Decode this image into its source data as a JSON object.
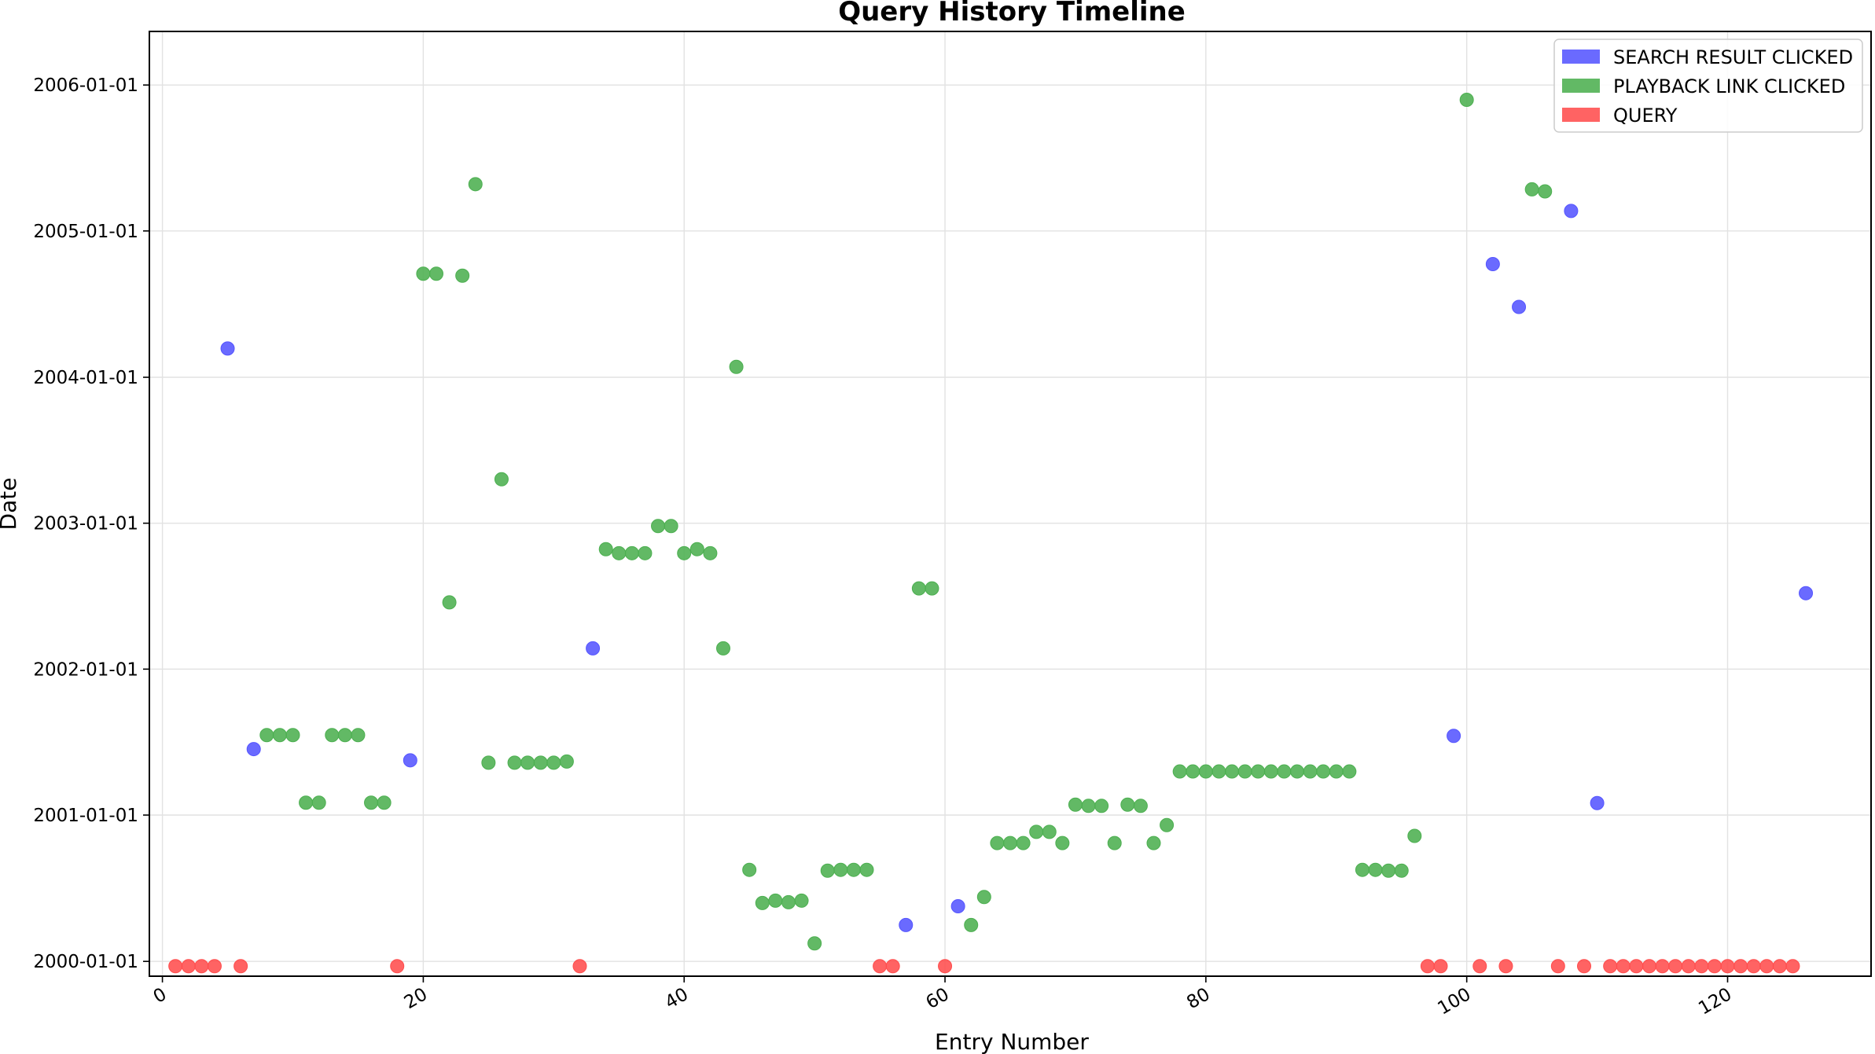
{
  "chart_data": {
    "type": "scatter",
    "title": "Query History Timeline",
    "xlabel": "Entry Number",
    "ylabel": "Date",
    "xlim": [
      -1,
      131
    ],
    "ylim": [
      "1999-11-25",
      "2006-05-15"
    ],
    "grid": true,
    "legend_position": "top-right",
    "x_ticks": [
      0,
      20,
      40,
      60,
      80,
      100,
      120
    ],
    "y_ticks": [
      "2000-01-01",
      "2001-01-01",
      "2002-01-01",
      "2003-01-01",
      "2004-01-01",
      "2005-01-01",
      "2006-01-01"
    ],
    "series": [
      {
        "name": "SEARCH RESULT CLICKED",
        "color": "#5555ff",
        "points": [
          {
            "x": 5,
            "y": "2004-03-13"
          },
          {
            "x": 7,
            "y": "2001-06-15"
          },
          {
            "x": 19,
            "y": "2001-05-18"
          },
          {
            "x": 33,
            "y": "2002-02-22"
          },
          {
            "x": 57,
            "y": "2000-04-01"
          },
          {
            "x": 61,
            "y": "2000-05-18"
          },
          {
            "x": 99,
            "y": "2001-07-18"
          },
          {
            "x": 102,
            "y": "2004-10-10"
          },
          {
            "x": 104,
            "y": "2004-06-25"
          },
          {
            "x": 108,
            "y": "2005-02-20"
          },
          {
            "x": 110,
            "y": "2001-01-31"
          },
          {
            "x": 126,
            "y": "2002-07-10"
          }
        ]
      },
      {
        "name": "PLAYBACK LINK CLICKED",
        "color": "#4caf50",
        "points": [
          {
            "x": 8,
            "y": "2001-07-20"
          },
          {
            "x": 9,
            "y": "2001-07-20"
          },
          {
            "x": 10,
            "y": "2001-07-20"
          },
          {
            "x": 11,
            "y": "2001-02-01"
          },
          {
            "x": 12,
            "y": "2001-02-01"
          },
          {
            "x": 13,
            "y": "2001-07-20"
          },
          {
            "x": 14,
            "y": "2001-07-20"
          },
          {
            "x": 15,
            "y": "2001-07-20"
          },
          {
            "x": 16,
            "y": "2001-02-01"
          },
          {
            "x": 17,
            "y": "2001-02-01"
          },
          {
            "x": 20,
            "y": "2004-09-16"
          },
          {
            "x": 21,
            "y": "2004-09-16"
          },
          {
            "x": 22,
            "y": "2002-06-17"
          },
          {
            "x": 23,
            "y": "2004-09-11"
          },
          {
            "x": 24,
            "y": "2005-04-28"
          },
          {
            "x": 25,
            "y": "2001-05-12"
          },
          {
            "x": 26,
            "y": "2003-04-21"
          },
          {
            "x": 27,
            "y": "2001-05-12"
          },
          {
            "x": 28,
            "y": "2001-05-12"
          },
          {
            "x": 29,
            "y": "2001-05-12"
          },
          {
            "x": 30,
            "y": "2001-05-12"
          },
          {
            "x": 31,
            "y": "2001-05-15"
          },
          {
            "x": 34,
            "y": "2002-10-28"
          },
          {
            "x": 35,
            "y": "2002-10-18"
          },
          {
            "x": 36,
            "y": "2002-10-18"
          },
          {
            "x": 37,
            "y": "2002-10-18"
          },
          {
            "x": 38,
            "y": "2002-12-25"
          },
          {
            "x": 39,
            "y": "2002-12-25"
          },
          {
            "x": 40,
            "y": "2002-10-18"
          },
          {
            "x": 41,
            "y": "2002-10-28"
          },
          {
            "x": 42,
            "y": "2002-10-18"
          },
          {
            "x": 43,
            "y": "2002-02-22"
          },
          {
            "x": 44,
            "y": "2004-01-27"
          },
          {
            "x": 45,
            "y": "2000-08-17"
          },
          {
            "x": 46,
            "y": "2000-05-26"
          },
          {
            "x": 47,
            "y": "2000-06-01"
          },
          {
            "x": 48,
            "y": "2000-05-28"
          },
          {
            "x": 49,
            "y": "2000-06-01"
          },
          {
            "x": 50,
            "y": "2000-02-15"
          },
          {
            "x": 51,
            "y": "2000-08-15"
          },
          {
            "x": 52,
            "y": "2000-08-17"
          },
          {
            "x": 53,
            "y": "2000-08-17"
          },
          {
            "x": 54,
            "y": "2000-08-17"
          },
          {
            "x": 58,
            "y": "2002-07-22"
          },
          {
            "x": 59,
            "y": "2002-07-22"
          },
          {
            "x": 62,
            "y": "2000-04-01"
          },
          {
            "x": 63,
            "y": "2000-06-10"
          },
          {
            "x": 64,
            "y": "2000-10-23"
          },
          {
            "x": 65,
            "y": "2000-10-23"
          },
          {
            "x": 66,
            "y": "2000-10-23"
          },
          {
            "x": 67,
            "y": "2000-11-20"
          },
          {
            "x": 68,
            "y": "2000-11-20"
          },
          {
            "x": 69,
            "y": "2000-10-23"
          },
          {
            "x": 70,
            "y": "2001-01-27"
          },
          {
            "x": 71,
            "y": "2001-01-24"
          },
          {
            "x": 72,
            "y": "2001-01-24"
          },
          {
            "x": 73,
            "y": "2000-10-23"
          },
          {
            "x": 74,
            "y": "2001-01-27"
          },
          {
            "x": 75,
            "y": "2001-01-24"
          },
          {
            "x": 76,
            "y": "2000-10-23"
          },
          {
            "x": 77,
            "y": "2000-12-07"
          },
          {
            "x": 78,
            "y": "2001-04-20"
          },
          {
            "x": 79,
            "y": "2001-04-20"
          },
          {
            "x": 80,
            "y": "2001-04-20"
          },
          {
            "x": 81,
            "y": "2001-04-20"
          },
          {
            "x": 82,
            "y": "2001-04-20"
          },
          {
            "x": 83,
            "y": "2001-04-20"
          },
          {
            "x": 84,
            "y": "2001-04-20"
          },
          {
            "x": 85,
            "y": "2001-04-20"
          },
          {
            "x": 86,
            "y": "2001-04-20"
          },
          {
            "x": 87,
            "y": "2001-04-20"
          },
          {
            "x": 88,
            "y": "2001-04-20"
          },
          {
            "x": 89,
            "y": "2001-04-20"
          },
          {
            "x": 90,
            "y": "2001-04-20"
          },
          {
            "x": 91,
            "y": "2001-04-20"
          },
          {
            "x": 92,
            "y": "2000-08-17"
          },
          {
            "x": 93,
            "y": "2000-08-17"
          },
          {
            "x": 94,
            "y": "2000-08-15"
          },
          {
            "x": 95,
            "y": "2000-08-15"
          },
          {
            "x": 96,
            "y": "2000-11-10"
          },
          {
            "x": 100,
            "y": "2005-11-25"
          },
          {
            "x": 105,
            "y": "2005-04-15"
          },
          {
            "x": 106,
            "y": "2005-04-10"
          }
        ]
      },
      {
        "name": "QUERY",
        "color": "#ff4d4d",
        "points": [
          {
            "x": 1,
            "y": "1999-12-20"
          },
          {
            "x": 2,
            "y": "1999-12-20"
          },
          {
            "x": 3,
            "y": "1999-12-20"
          },
          {
            "x": 4,
            "y": "1999-12-20"
          },
          {
            "x": 6,
            "y": "1999-12-20"
          },
          {
            "x": 18,
            "y": "1999-12-20"
          },
          {
            "x": 32,
            "y": "1999-12-20"
          },
          {
            "x": 55,
            "y": "1999-12-20"
          },
          {
            "x": 56,
            "y": "1999-12-20"
          },
          {
            "x": 60,
            "y": "1999-12-20"
          },
          {
            "x": 97,
            "y": "1999-12-20"
          },
          {
            "x": 98,
            "y": "1999-12-20"
          },
          {
            "x": 101,
            "y": "1999-12-20"
          },
          {
            "x": 103,
            "y": "1999-12-20"
          },
          {
            "x": 107,
            "y": "1999-12-20"
          },
          {
            "x": 109,
            "y": "1999-12-20"
          },
          {
            "x": 111,
            "y": "1999-12-20"
          },
          {
            "x": 112,
            "y": "1999-12-20"
          },
          {
            "x": 113,
            "y": "1999-12-20"
          },
          {
            "x": 114,
            "y": "1999-12-20"
          },
          {
            "x": 115,
            "y": "1999-12-20"
          },
          {
            "x": 116,
            "y": "1999-12-20"
          },
          {
            "x": 117,
            "y": "1999-12-20"
          },
          {
            "x": 118,
            "y": "1999-12-20"
          },
          {
            "x": 119,
            "y": "1999-12-20"
          },
          {
            "x": 120,
            "y": "1999-12-20"
          },
          {
            "x": 121,
            "y": "1999-12-20"
          },
          {
            "x": 122,
            "y": "1999-12-20"
          },
          {
            "x": 123,
            "y": "1999-12-20"
          },
          {
            "x": 124,
            "y": "1999-12-20"
          },
          {
            "x": 125,
            "y": "1999-12-20"
          }
        ]
      }
    ]
  }
}
